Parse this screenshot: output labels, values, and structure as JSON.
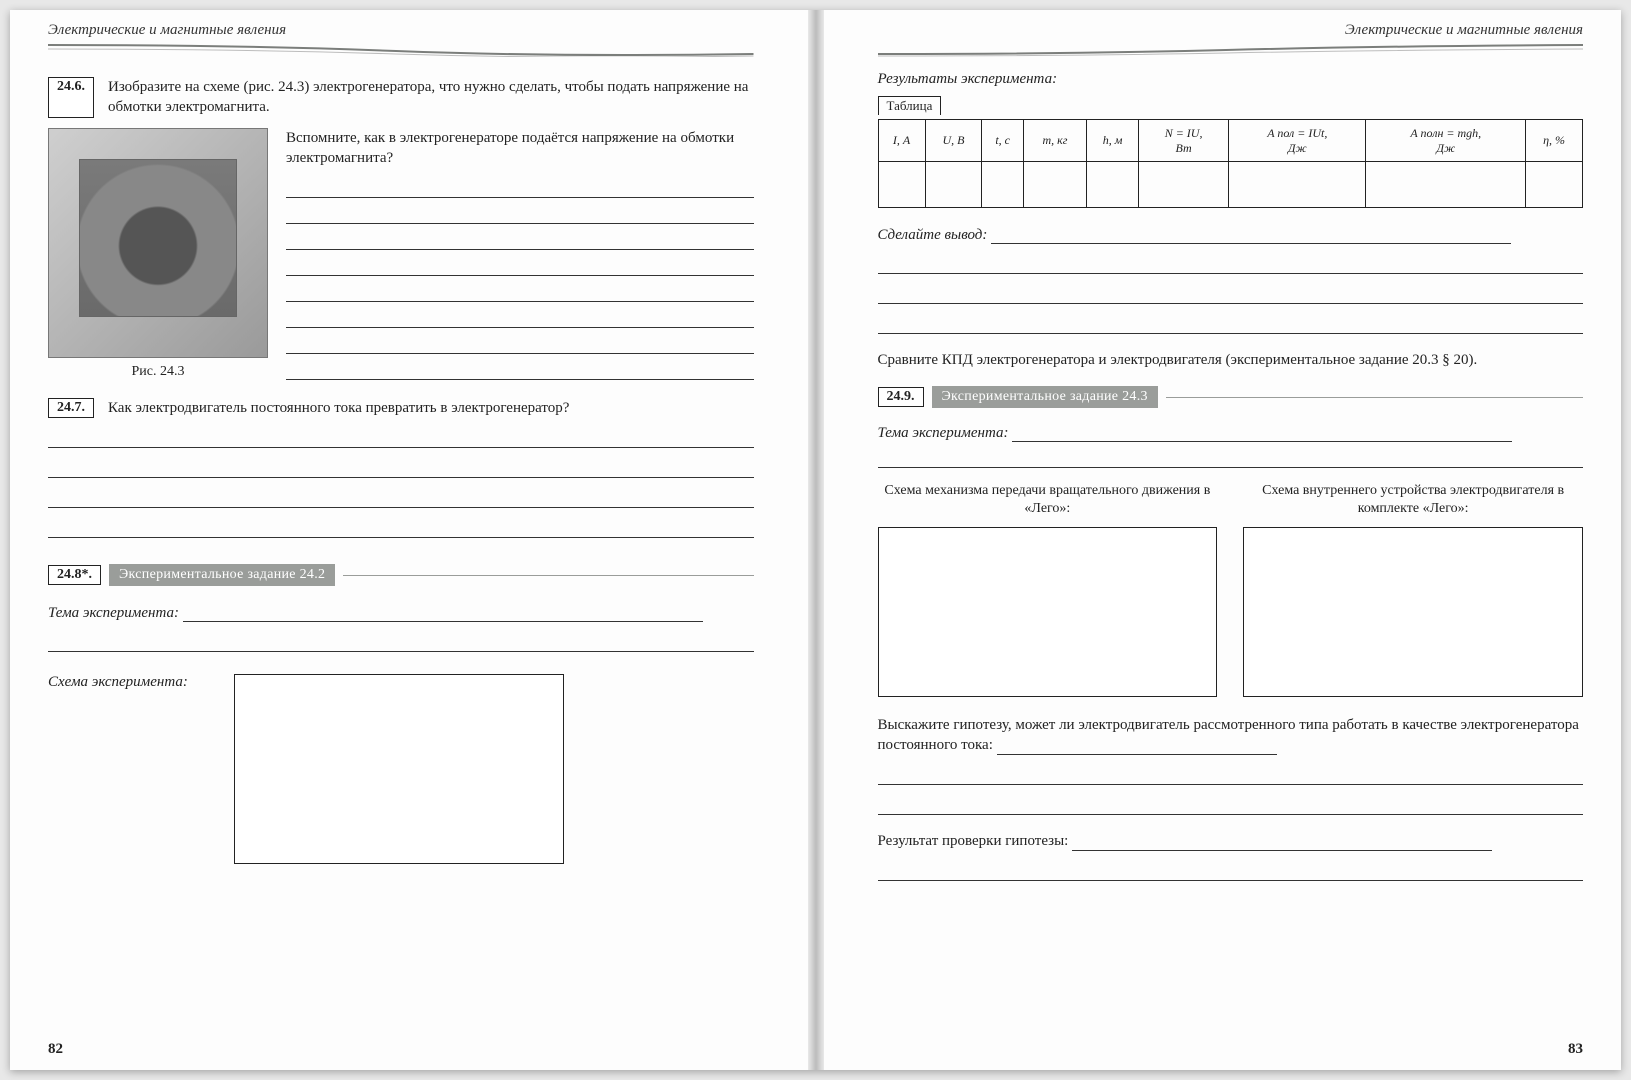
{
  "chapter_title": "Электрические и магнитные явления",
  "left": {
    "pagenum": "82",
    "task246": {
      "num": "24.6.",
      "text": "Изобразите на схеме (рис. 24.3) электрогенератора, что нужно сделать, чтобы подать напряжение на обмотки электромагнита.",
      "hint": "Вспомните, как в электрогенераторе подаётся напряжение на обмотки электромагнита?",
      "fig_caption": "Рис. 24.3"
    },
    "task247": {
      "num": "24.7.",
      "text": "Как электродвигатель постоянного тока превратить в электрогенератор?"
    },
    "task248": {
      "num": "24.8*.",
      "bar": "Экспериментальное задание 24.2",
      "theme_label": "Тема эксперимента:",
      "scheme_label": "Схема эксперимента:"
    }
  },
  "right": {
    "pagenum": "83",
    "results_label": "Результаты эксперимента:",
    "table_caption": "Таблица",
    "table_headers": [
      "I, А",
      "U, В",
      "t, с",
      "m, кг",
      "h, м",
      "N = IU,\nВт",
      "A пол = IUt,\nДж",
      "A полн = mgh,\nДж",
      "η, %"
    ],
    "conclusion_label": "Сделайте вывод:",
    "compare_text": "Сравните КПД электрогенератора и электродвигателя (экспериментальное задание 20.3 § 20).",
    "task249": {
      "num": "24.9.",
      "bar": "Экспериментальное задание 24.3",
      "theme_label": "Тема эксперимента:",
      "cap_left": "Схема механизма передачи вращательного движения в «Лего»:",
      "cap_right": "Схема внутреннего устройства электродвигателя в комплекте «Лего»:",
      "hypothesis_text": "Выскажите гипотезу, может ли электродвигатель рассмотренного типа работать в качестве электрогенератора постоянного тока:",
      "result_label": "Результат проверки гипотезы:"
    }
  },
  "style": {
    "rule_color": "#7b7e7b",
    "bar_bg": "#9a9d9a",
    "line_color": "#333333",
    "font_body_pt": 15,
    "font_small_pt": 13
  }
}
